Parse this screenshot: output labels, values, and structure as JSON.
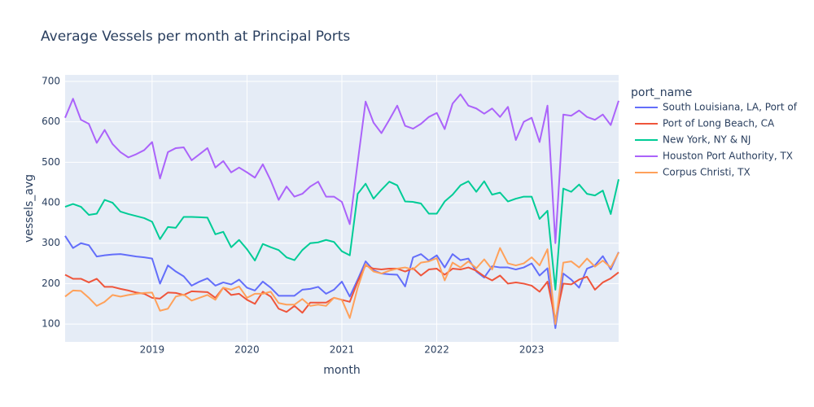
{
  "chart_data": {
    "type": "line",
    "title": "Average Vessels per month at Principal Ports",
    "x_label": "month",
    "y_label": "vessels_avg",
    "legend_title": "port_name",
    "grid": true,
    "legend_position": "right",
    "x": [
      "2018-02",
      "2018-03",
      "2018-04",
      "2018-05",
      "2018-06",
      "2018-07",
      "2018-08",
      "2018-09",
      "2018-10",
      "2018-11",
      "2018-12",
      "2019-01",
      "2019-02",
      "2019-03",
      "2019-04",
      "2019-05",
      "2019-06",
      "2019-07",
      "2019-08",
      "2019-09",
      "2019-10",
      "2019-11",
      "2019-12",
      "2020-01",
      "2020-02",
      "2020-03",
      "2020-04",
      "2020-05",
      "2020-06",
      "2020-07",
      "2020-08",
      "2020-09",
      "2020-10",
      "2020-11",
      "2020-12",
      "2021-01",
      "2021-02",
      "2021-03",
      "2021-04",
      "2021-05",
      "2021-06",
      "2021-07",
      "2021-08",
      "2021-09",
      "2021-10",
      "2021-11",
      "2021-12",
      "2022-01",
      "2022-02",
      "2022-03",
      "2022-04",
      "2022-05",
      "2022-06",
      "2022-07",
      "2022-08",
      "2022-09",
      "2022-10",
      "2022-11",
      "2022-12",
      "2023-01",
      "2023-02",
      "2023-03",
      "2023-04",
      "2023-05",
      "2023-06",
      "2023-07",
      "2023-08",
      "2023-09",
      "2023-10",
      "2023-11",
      "2023-12"
    ],
    "xlim": [
      "2018-02",
      "2023-12"
    ],
    "xticks": [
      {
        "value": "2019-01",
        "label": "2019"
      },
      {
        "value": "2020-01",
        "label": "2020"
      },
      {
        "value": "2021-01",
        "label": "2021"
      },
      {
        "value": "2022-01",
        "label": "2022"
      },
      {
        "value": "2023-01",
        "label": "2023"
      }
    ],
    "ylim": [
      56,
      716
    ],
    "yticks": [
      100,
      200,
      300,
      400,
      500,
      600,
      700
    ],
    "series": [
      {
        "name": "South Louisiana, LA, Port of",
        "color": "#636efa",
        "values": [
          318,
          288,
          300,
          295,
          267,
          270,
          272,
          273,
          270,
          267,
          265,
          262,
          200,
          245,
          230,
          218,
          195,
          205,
          213,
          195,
          203,
          198,
          210,
          190,
          183,
          205,
          190,
          170,
          170,
          170,
          185,
          187,
          192,
          175,
          185,
          205,
          168,
          210,
          255,
          233,
          225,
          223,
          222,
          193,
          265,
          273,
          257,
          270,
          240,
          273,
          258,
          262,
          230,
          215,
          243,
          240,
          240,
          235,
          240,
          250,
          220,
          238,
          90,
          225,
          210,
          190,
          237,
          245,
          268,
          235,
          278
        ]
      },
      {
        "name": "Port of Long Beach, CA",
        "color": "#EF553B",
        "values": [
          222,
          212,
          212,
          203,
          212,
          192,
          192,
          187,
          183,
          178,
          175,
          165,
          163,
          178,
          177,
          172,
          181,
          180,
          179,
          165,
          190,
          172,
          175,
          160,
          150,
          180,
          168,
          138,
          130,
          145,
          128,
          153,
          153,
          153,
          165,
          160,
          155,
          205,
          245,
          237,
          235,
          237,
          237,
          230,
          238,
          220,
          235,
          237,
          222,
          237,
          235,
          240,
          232,
          218,
          208,
          220,
          200,
          203,
          200,
          195,
          180,
          205,
          110,
          200,
          198,
          210,
          217,
          185,
          203,
          213,
          228
        ]
      },
      {
        "name": "New York, NY & NJ",
        "color": "#00cc96",
        "values": [
          390,
          397,
          390,
          370,
          373,
          407,
          400,
          378,
          372,
          367,
          362,
          353,
          310,
          340,
          338,
          365,
          365,
          364,
          363,
          322,
          328,
          290,
          308,
          285,
          257,
          298,
          290,
          283,
          265,
          258,
          283,
          300,
          302,
          308,
          303,
          280,
          270,
          422,
          447,
          410,
          432,
          452,
          443,
          403,
          402,
          398,
          373,
          373,
          403,
          420,
          443,
          453,
          427,
          453,
          420,
          425,
          403,
          410,
          415,
          415,
          360,
          380,
          185,
          435,
          427,
          445,
          422,
          418,
          430,
          372,
          458
        ]
      },
      {
        "name": "Houston Port Authority, TX",
        "color": "#ab63fa",
        "values": [
          610,
          657,
          605,
          595,
          548,
          580,
          545,
          525,
          512,
          520,
          530,
          550,
          460,
          525,
          535,
          537,
          505,
          520,
          535,
          487,
          503,
          475,
          487,
          475,
          462,
          495,
          455,
          407,
          440,
          415,
          422,
          440,
          452,
          415,
          415,
          402,
          347,
          500,
          650,
          598,
          572,
          605,
          640,
          590,
          583,
          595,
          612,
          622,
          582,
          645,
          668,
          640,
          633,
          620,
          633,
          612,
          637,
          555,
          600,
          610,
          550,
          640,
          300,
          618,
          615,
          628,
          612,
          605,
          618,
          592,
          652
        ]
      },
      {
        "name": "Corpus Christi, TX",
        "color": "#FFA15A",
        "values": [
          168,
          183,
          182,
          165,
          145,
          155,
          172,
          168,
          172,
          175,
          177,
          178,
          133,
          138,
          168,
          173,
          158,
          165,
          172,
          160,
          190,
          185,
          193,
          165,
          175,
          175,
          180,
          152,
          148,
          148,
          162,
          145,
          148,
          145,
          165,
          160,
          115,
          190,
          248,
          230,
          225,
          232,
          237,
          240,
          235,
          252,
          255,
          263,
          208,
          252,
          240,
          255,
          238,
          260,
          235,
          288,
          250,
          245,
          250,
          265,
          245,
          285,
          100,
          252,
          255,
          240,
          262,
          242,
          257,
          240,
          277
        ]
      }
    ]
  }
}
